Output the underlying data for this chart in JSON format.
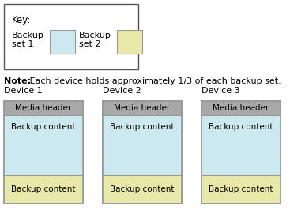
{
  "background_color": "#ffffff",
  "key_title": "Key:",
  "key_items": [
    {
      "label1": "Backup",
      "label2": "set 1",
      "color": "#cce9ef"
    },
    {
      "label1": "Backup",
      "label2": "set 2",
      "color": "#e8e8a8"
    }
  ],
  "note_bold": "Note:",
  "note_text": " Each device holds approximately 1/3 of each backup set.",
  "devices": [
    "Device 1",
    "Device 2",
    "Device 3"
  ],
  "header_color": "#a8a8a8",
  "color_set1": "#cce9ef",
  "color_set2": "#e8e8a8",
  "header_label": "Media header",
  "content_label": "Backup content",
  "edge_color": "#999999",
  "font_family": "DejaVu Sans"
}
